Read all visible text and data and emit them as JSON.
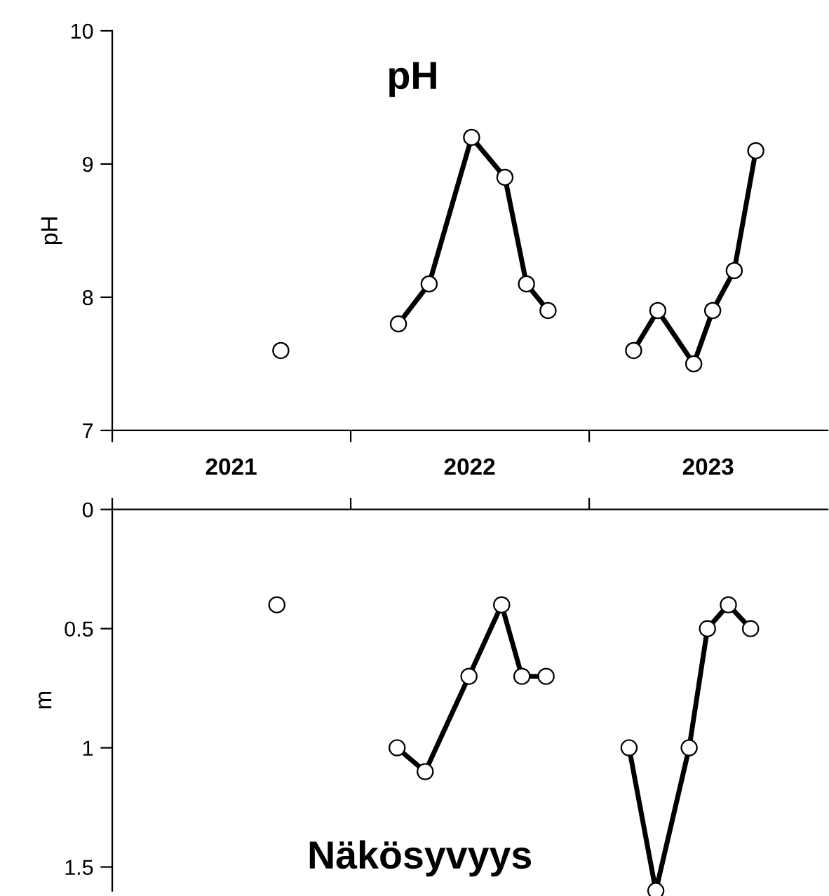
{
  "chart_data": [
    {
      "type": "line",
      "title": "pH",
      "ylabel": "pH",
      "x": [
        "2021-09-16",
        null,
        "2022-03-15",
        "2022-05-01",
        "2022-07-05",
        "2022-08-25",
        "2022-09-27",
        "2022-10-30",
        null,
        "2023-03-10",
        "2023-04-16",
        "2023-06-10",
        "2023-07-09",
        "2023-08-11",
        "2023-09-13"
      ],
      "series": [
        {
          "color": "#000000",
          "values": [
            7.6,
            null,
            7.8,
            8.1,
            9.2,
            8.9,
            8.1,
            7.9,
            null,
            7.6,
            7.9,
            7.5,
            7.9,
            8.2,
            9.1
          ]
        }
      ],
      "xlim": [
        "2021-01-01",
        "2024-01-01"
      ],
      "xticks": [
        {
          "value": "2021-01-01",
          "label": null
        },
        {
          "value": "2021-07-02",
          "label": "2021"
        },
        {
          "value": "2022-01-01",
          "label": null
        },
        {
          "value": "2022-07-02",
          "label": "2022"
        },
        {
          "value": "2023-01-01",
          "label": null
        },
        {
          "value": "2023-07-02",
          "label": "2023"
        }
      ],
      "ylim": [
        7,
        10
      ],
      "yticks": [
        7,
        8,
        9,
        10
      ],
      "marker": "circle",
      "line_style": "solid",
      "grid": false
    },
    {
      "type": "line",
      "title": "Näkösyvyys",
      "ylabel": "m",
      "x": [
        "2021-09-10",
        null,
        "2022-03-13",
        "2022-04-25",
        "2022-07-01",
        "2022-08-20",
        "2022-09-20",
        "2022-10-27",
        null,
        "2023-03-03",
        "2023-04-13",
        "2023-06-03",
        "2023-07-01",
        "2023-08-02",
        "2023-09-05"
      ],
      "series": [
        {
          "color": "#000000",
          "values": [
            0.4,
            null,
            1.0,
            1.1,
            0.7,
            0.4,
            0.7,
            0.7,
            null,
            1.0,
            1.6,
            1.0,
            0.5,
            0.4,
            0.5
          ]
        }
      ],
      "xlim": [
        "2021-01-01",
        "2024-01-01"
      ],
      "xticks": [
        {
          "value": "2021-01-01",
          "label": null
        },
        {
          "value": "2022-01-01",
          "label": null
        },
        {
          "value": "2023-01-01",
          "label": null
        }
      ],
      "ylim": [
        1.6,
        0
      ],
      "yticks": [
        0,
        0.5,
        1,
        1.5
      ],
      "marker": "circle",
      "line_style": "solid",
      "grid": false,
      "tick_labels": "y"
    }
  ]
}
